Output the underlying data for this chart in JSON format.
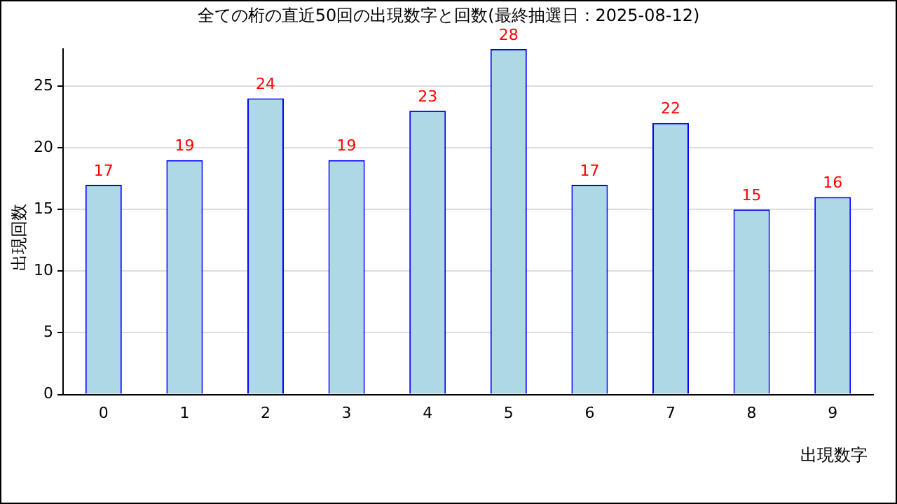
{
  "chart_data": {
    "type": "bar",
    "title": "全ての桁の直近50回の出現数字と回数(最終抽選日：2025-08-12)",
    "xlabel": "出現数字",
    "ylabel": "出現回数",
    "categories": [
      "0",
      "1",
      "2",
      "3",
      "4",
      "5",
      "6",
      "7",
      "8",
      "9"
    ],
    "series": [
      {
        "color": "#add8e6",
        "values": [
          17,
          19,
          24,
          19,
          23,
          28,
          17,
          22,
          15,
          16
        ]
      }
    ],
    "ylim": [
      0,
      28
    ],
    "yticks": [
      0,
      5,
      10,
      15,
      20,
      25
    ],
    "grid": "y",
    "data_labels": true,
    "legend": false
  }
}
